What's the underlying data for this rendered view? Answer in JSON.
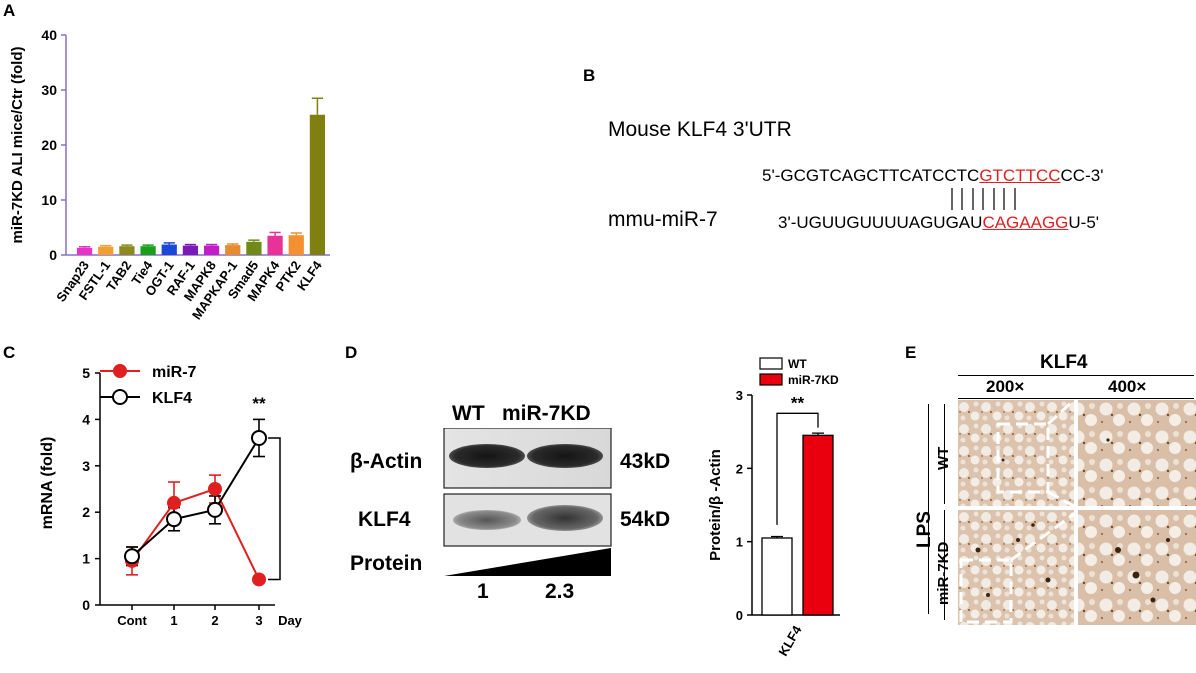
{
  "panel_labels": {
    "a": "A",
    "b": "B",
    "c": "C",
    "d": "D",
    "e": "E"
  },
  "chart_data": [
    {
      "id": "A",
      "type": "bar",
      "ylabel": "miR-7KD ALI mice/Ctr (fold)",
      "ylim": [
        0,
        40
      ],
      "yticks": [
        0,
        10,
        20,
        30,
        40
      ],
      "categories": [
        "Snap23",
        "FSTL-1",
        "TAB2",
        "Tie4",
        "OGT-1",
        "RAF-1",
        "MAPK8",
        "MAPKAP-1",
        "Smad5",
        "MAPK4",
        "PTK2",
        "KLF4"
      ],
      "values": [
        1.3,
        1.5,
        1.6,
        1.6,
        1.9,
        1.7,
        1.7,
        1.8,
        2.4,
        3.5,
        3.6,
        25.5
      ],
      "errors": [
        0.2,
        0.2,
        0.2,
        0.2,
        0.3,
        0.2,
        0.2,
        0.2,
        0.3,
        0.6,
        0.4,
        3.0
      ],
      "colors": [
        "#e535c8",
        "#f0a030",
        "#8a8a1e",
        "#18a018",
        "#1a48d8",
        "#7a1ab8",
        "#c21ec8",
        "#e88a30",
        "#6f8a18",
        "#e8329a",
        "#f49030",
        "#808010"
      ]
    },
    {
      "id": "C",
      "type": "line",
      "ylabel": "mRNA (fold)",
      "xlabel": "Day",
      "categories": [
        "Cont",
        "1",
        "2",
        "3"
      ],
      "ylim": [
        0,
        5
      ],
      "yticks": [
        0,
        1,
        2,
        3,
        4,
        5
      ],
      "series": [
        {
          "name": "miR-7",
          "color": "#e02020",
          "values": [
            0.95,
            2.2,
            2.5,
            0.55
          ],
          "errors": [
            0.3,
            0.45,
            0.3,
            0.05
          ]
        },
        {
          "name": "KLF4",
          "color": "#000000",
          "values": [
            1.05,
            1.85,
            2.05,
            3.6
          ],
          "errors": [
            0.2,
            0.25,
            0.3,
            0.4
          ]
        }
      ],
      "significance": "**"
    },
    {
      "id": "D",
      "type": "bar",
      "ylabel": "Protein/β -Actin",
      "categories": [
        "KLF4"
      ],
      "ylim": [
        0,
        3
      ],
      "yticks": [
        0,
        1,
        2,
        3
      ],
      "series": [
        {
          "name": "WT",
          "color": "#ffffff",
          "values": [
            1.05
          ],
          "errors": [
            0.02
          ]
        },
        {
          "name": "miR-7KD",
          "color": "#e8000e",
          "values": [
            2.45
          ],
          "errors": [
            0.03
          ]
        }
      ],
      "significance": "**"
    }
  ],
  "panel_b": {
    "title": "Mouse KLF4  3'UTR",
    "mirna_label": "mmu-miR-7",
    "seq_top_pre": "5'-GCGTCAGCTTCATCCTC",
    "seq_top_hl": "GTCTTCC",
    "seq_top_post": "CC-3'",
    "seq_bot_pre": "3'-UGUUGUUUUAGUGAU",
    "seq_bot_hl": "CAGAAGG",
    "seq_bot_post": "U-5'"
  },
  "panel_d_blot": {
    "col_wt": "WT",
    "col_kd": "miR-7KD",
    "row_actin": "β-Actin",
    "row_klf4": "KLF4",
    "size_actin": "43kD",
    "size_klf4": "54kD",
    "protein_label": "Protein",
    "quant_wt": "1",
    "quant_kd": "2.3"
  },
  "panel_e": {
    "title": "KLF4",
    "mag_low": "200×",
    "mag_high": "400×",
    "group": "LPS",
    "row_wt": "WT",
    "row_kd": "miR-7KD"
  }
}
